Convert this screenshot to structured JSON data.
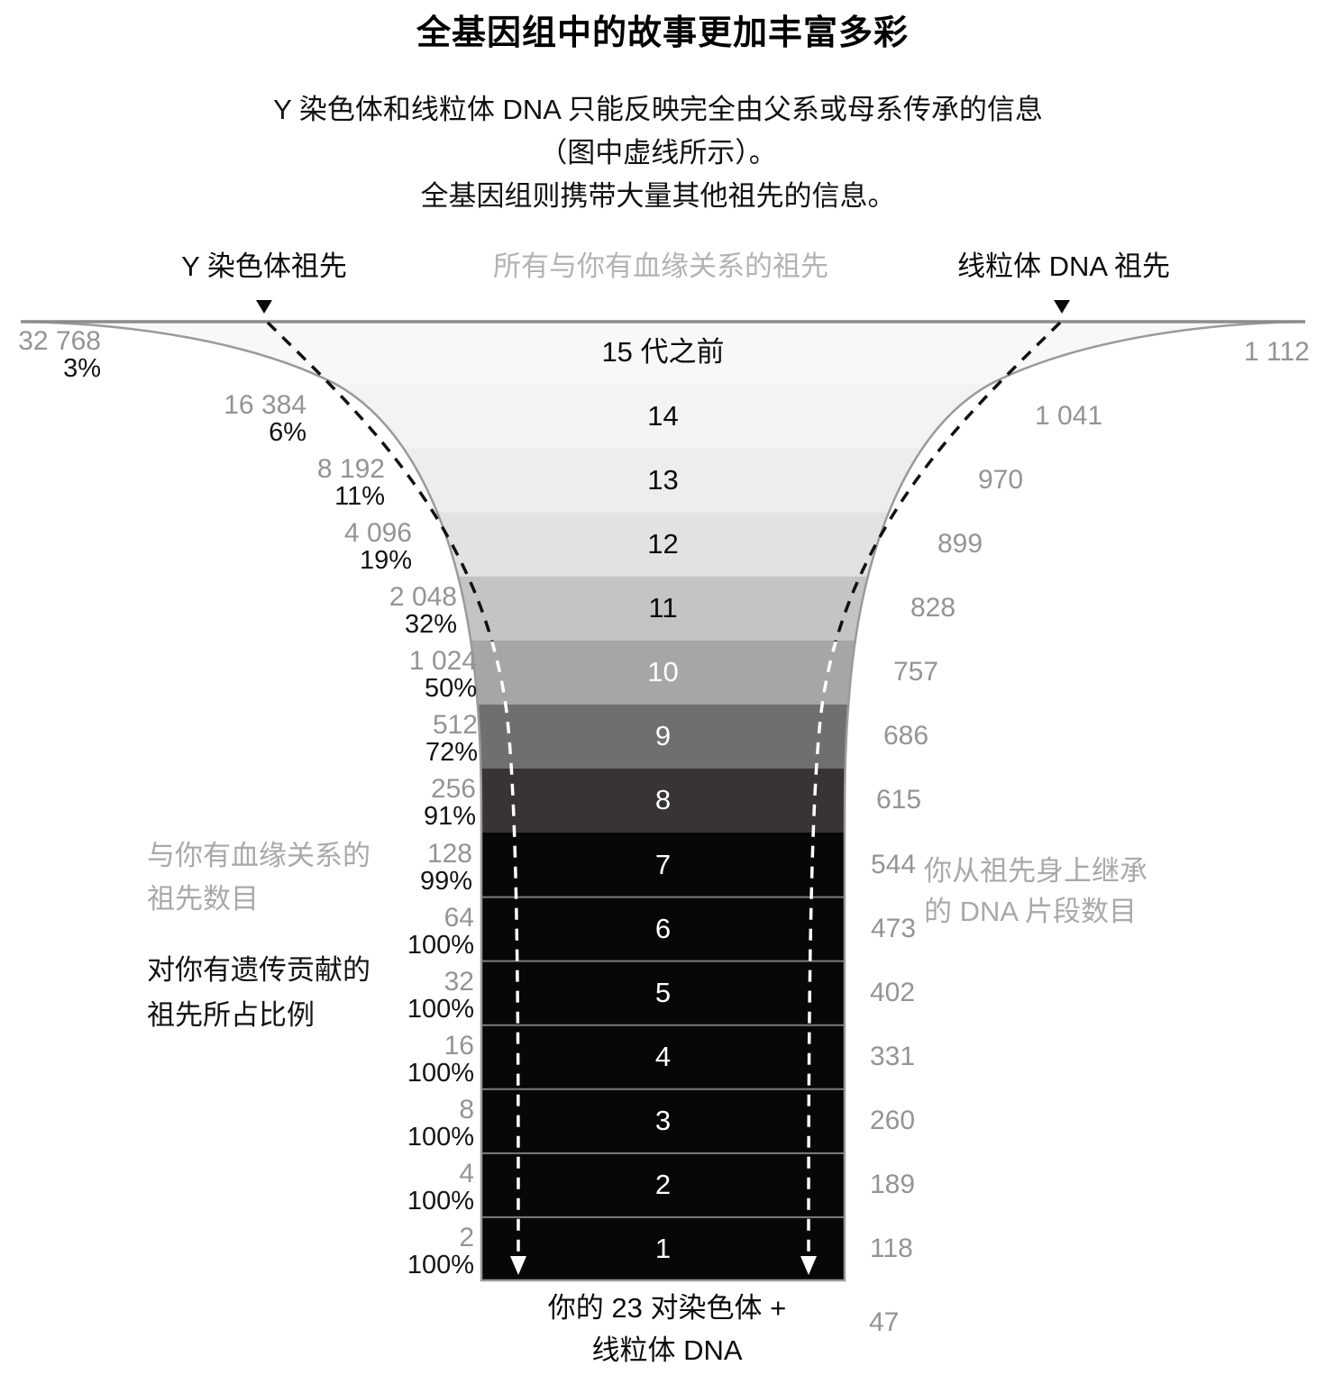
{
  "title": "全基因组中的故事更加丰富多彩",
  "subtitle": [
    "Y 染色体和线粒体 DNA 只能反映完全由父系或母系传承的信息",
    "（图中虚线所示）。",
    "全基因组则携带大量其他祖先的信息。"
  ],
  "headers": {
    "y_ancestor": "Y 染色体祖先",
    "all_ancestors": "所有与你有血缘关系的祖先",
    "mt_ancestor": "线粒体 DNA 祖先"
  },
  "annotations": {
    "ancestor_count": [
      "与你有血缘关系的",
      "祖先数目"
    ],
    "percent_contribution": [
      "对你有遗传贡献的",
      "祖先所占比例"
    ],
    "dna_segments": [
      "你从祖先身上继承",
      "的 DNA 片段数目"
    ]
  },
  "footer": {
    "label": [
      "你的 23 对染色体 +",
      "线粒体 DNA"
    ],
    "segments": "47",
    "segments_value": 47
  },
  "colors": {
    "number_gray": "#949494",
    "annotation_gray": "#a9a9a9",
    "outline_gray": "#9a9a9a",
    "separator_gray": "#7d7d7d",
    "dash_upper": "#111111",
    "dash_lower": "#ffffff"
  },
  "chart_data": {
    "type": "funnel",
    "title": "全基因组中的故事更加丰富多彩",
    "left_series_name": "与你有血缘关系的祖先数目 / 对你有遗传贡献的祖先所占比例",
    "right_series_name": "你从祖先身上继承的 DNA 片段数目",
    "rows": [
      {
        "generation": 15,
        "label": "15 代之前",
        "ancestors": "32 768",
        "ancestors_value": 32768,
        "percent": "3%",
        "segments": "1 112",
        "segments_value": 1112,
        "color": "#f8f8f8",
        "text_color": "#0b0b0b"
      },
      {
        "generation": 14,
        "label": "14",
        "ancestors": "16 384",
        "ancestors_value": 16384,
        "percent": "6%",
        "segments": "1 041",
        "segments_value": 1041,
        "color": "#f3f3f3",
        "text_color": "#0b0b0b"
      },
      {
        "generation": 13,
        "label": "13",
        "ancestors": "8 192",
        "ancestors_value": 8192,
        "percent": "11%",
        "segments": "970",
        "segments_value": 970,
        "color": "#ededed",
        "text_color": "#0b0b0b"
      },
      {
        "generation": 12,
        "label": "12",
        "ancestors": "4 096",
        "ancestors_value": 4096,
        "percent": "19%",
        "segments": "899",
        "segments_value": 899,
        "color": "#e2e2e2",
        "text_color": "#0b0b0b"
      },
      {
        "generation": 11,
        "label": "11",
        "ancestors": "2 048",
        "ancestors_value": 2048,
        "percent": "32%",
        "segments": "828",
        "segments_value": 828,
        "color": "#c4c4c4",
        "text_color": "#0b0b0b"
      },
      {
        "generation": 10,
        "label": "10",
        "ancestors": "1 024",
        "ancestors_value": 1024,
        "percent": "50%",
        "segments": "757",
        "segments_value": 757,
        "color": "#a6a6a6",
        "text_color": "#ffffff"
      },
      {
        "generation": 9,
        "label": "9",
        "ancestors": "512",
        "ancestors_value": 512,
        "percent": "72%",
        "segments": "686",
        "segments_value": 686,
        "color": "#6f6f6f",
        "text_color": "#ffffff"
      },
      {
        "generation": 8,
        "label": "8",
        "ancestors": "256",
        "ancestors_value": 256,
        "percent": "91%",
        "segments": "615",
        "segments_value": 615,
        "color": "#383434",
        "text_color": "#ffffff"
      },
      {
        "generation": 7,
        "label": "7",
        "ancestors": "128",
        "ancestors_value": 128,
        "percent": "99%",
        "segments": "544",
        "segments_value": 544,
        "color": "#070707",
        "text_color": "#ffffff"
      },
      {
        "generation": 6,
        "label": "6",
        "ancestors": "64",
        "ancestors_value": 64,
        "percent": "100%",
        "segments": "473",
        "segments_value": 473,
        "color": "#070707",
        "text_color": "#ffffff"
      },
      {
        "generation": 5,
        "label": "5",
        "ancestors": "32",
        "ancestors_value": 32,
        "percent": "100%",
        "segments": "402",
        "segments_value": 402,
        "color": "#070707",
        "text_color": "#ffffff"
      },
      {
        "generation": 4,
        "label": "4",
        "ancestors": "16",
        "ancestors_value": 16,
        "percent": "100%",
        "segments": "331",
        "segments_value": 331,
        "color": "#070707",
        "text_color": "#ffffff"
      },
      {
        "generation": 3,
        "label": "3",
        "ancestors": "8",
        "ancestors_value": 8,
        "percent": "100%",
        "segments": "260",
        "segments_value": 260,
        "color": "#070707",
        "text_color": "#ffffff"
      },
      {
        "generation": 2,
        "label": "2",
        "ancestors": "4",
        "ancestors_value": 4,
        "percent": "100%",
        "segments": "189",
        "segments_value": 189,
        "color": "#070707",
        "text_color": "#ffffff"
      },
      {
        "generation": 1,
        "label": "1",
        "ancestors": "2",
        "ancestors_value": 2,
        "percent": "100%",
        "segments": "118",
        "segments_value": 118,
        "color": "#070707",
        "text_color": "#ffffff"
      }
    ],
    "below_funnel_segments": 47,
    "legend_position": "sides",
    "grid": false
  }
}
